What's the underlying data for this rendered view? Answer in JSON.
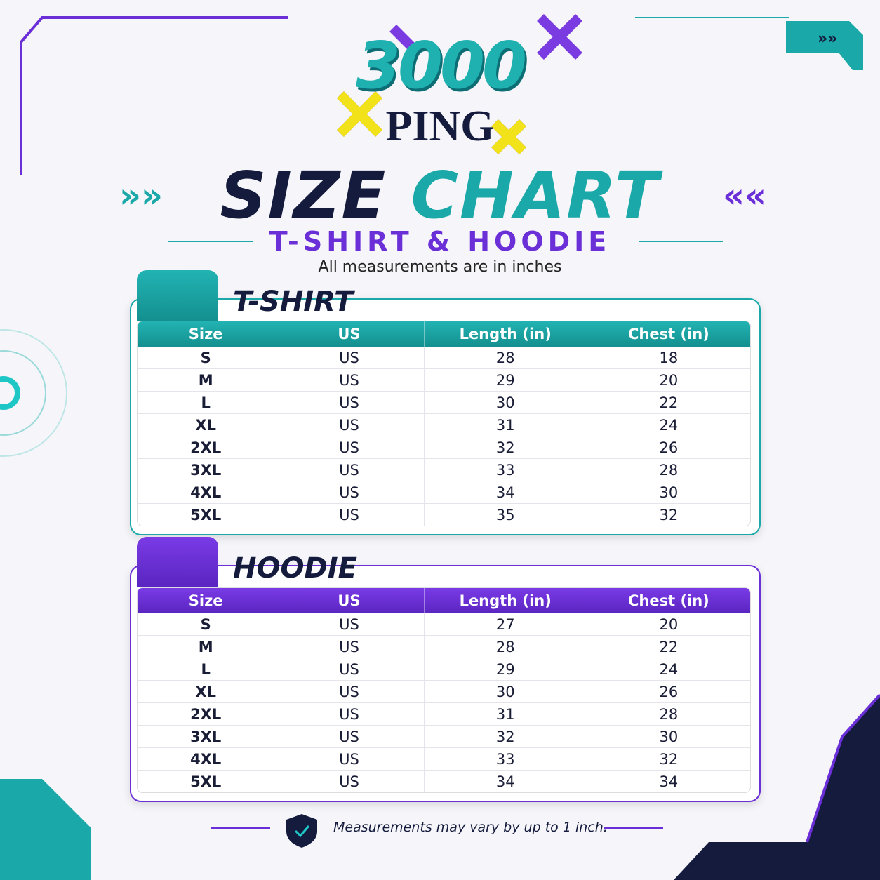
{
  "logo": {
    "number": "3000",
    "word": "PING"
  },
  "header": {
    "title_part1": "SIZE",
    "title_part2": "CHART",
    "subtitle": "T-SHIRT & HOODIE",
    "note": "All measurements are in inches"
  },
  "tables": [
    {
      "title": "T-SHIRT",
      "columns": [
        "Size",
        "US",
        "Length (in)",
        "Chest (in)"
      ],
      "rows": [
        [
          "S",
          "US",
          28,
          18
        ],
        [
          "M",
          "US",
          29,
          20
        ],
        [
          "L",
          "US",
          30,
          22
        ],
        [
          "XL",
          "US",
          31,
          24
        ],
        [
          "2XL",
          "US",
          32,
          26
        ],
        [
          "3XL",
          "US",
          33,
          28
        ],
        [
          "4XL",
          "US",
          34,
          30
        ],
        [
          "5XL",
          "US",
          35,
          32
        ]
      ]
    },
    {
      "title": "HOODIE",
      "columns": [
        "Size",
        "US",
        "Length (in)",
        "Chest (in)"
      ],
      "rows": [
        [
          "S",
          "US",
          27,
          20
        ],
        [
          "M",
          "US",
          28,
          22
        ],
        [
          "L",
          "US",
          29,
          24
        ],
        [
          "XL",
          "US",
          30,
          26
        ],
        [
          "2XL",
          "US",
          31,
          28
        ],
        [
          "3XL",
          "US",
          32,
          30
        ],
        [
          "4XL",
          "US",
          33,
          32
        ],
        [
          "5XL",
          "US",
          34,
          34
        ]
      ]
    }
  ],
  "footer": {
    "note": "Measurements may vary by up to 1 inch."
  }
}
